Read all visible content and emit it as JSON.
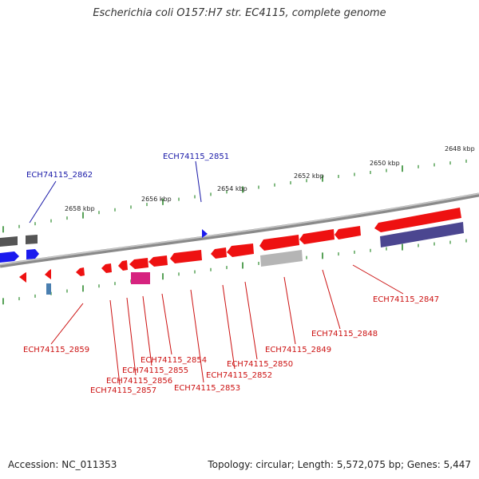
{
  "title": "Escherichia coli O157:H7 str. EC4115, complete genome",
  "footer": {
    "accession": "Accession: NC_011353",
    "topology": "Topology: circular; Length: 5,572,075 bp; Genes: 5,447"
  },
  "colors": {
    "backbone": "#8a8a8a",
    "tick": "#2e8b2e",
    "gene_forward_top": "#4a4a4a",
    "gene_forward_blue": "#1a1aee",
    "gene_reverse": "#ee1111",
    "gene_gray": "#b5b5b5",
    "gene_magenta": "#d6237f",
    "gene_purple": "#4b4690",
    "gene_small_blue": "#4a7fb0",
    "label_forward": "#1a1aa8",
    "label_reverse": "#cc1111"
  },
  "scale_labels": [
    "2648 kbp",
    "2650 kbp",
    "2652 kbp",
    "2654 kbp",
    "2656 kbp",
    "2658 kbp"
  ],
  "gene_labels_forward": [
    "ECH74115_2862",
    "ECH74115_2851"
  ],
  "gene_labels_reverse": [
    "ECH74115_2847",
    "ECH74115_2848",
    "ECH74115_2849",
    "ECH74115_2850",
    "ECH74115_2852",
    "ECH74115_2853",
    "ECH74115_2854",
    "ECH74115_2855",
    "ECH74115_2856",
    "ECH74115_2857",
    "ECH74115_2859"
  ]
}
